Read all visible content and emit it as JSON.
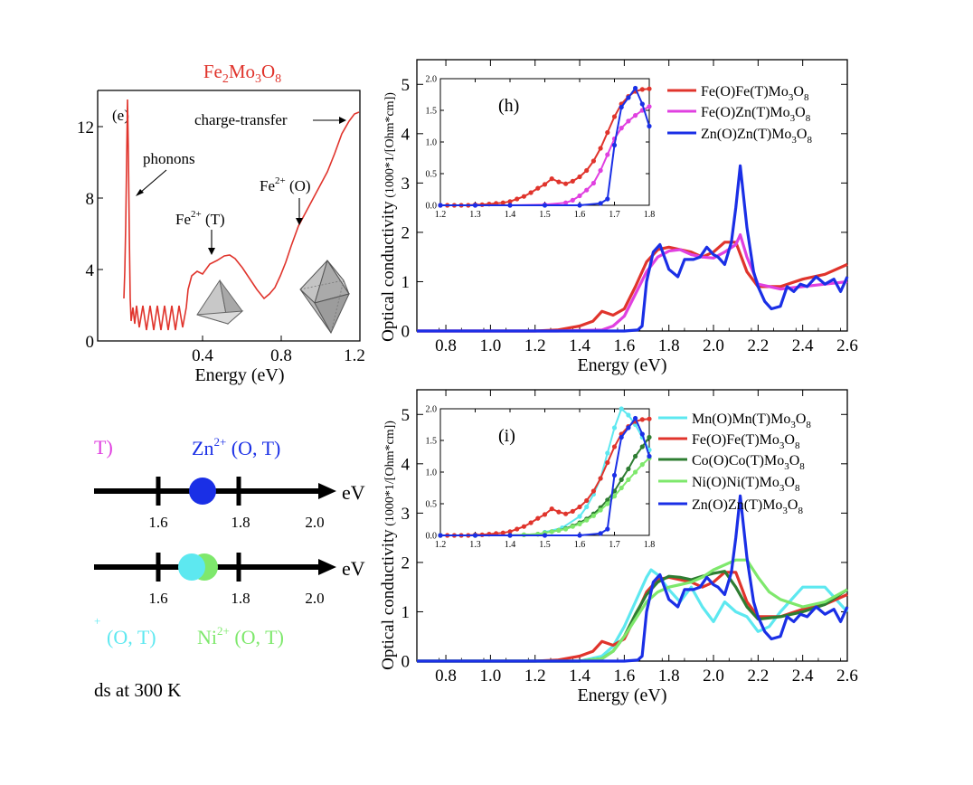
{
  "panel_e": {
    "title": "Fe2Mo3O8",
    "label": "(e)",
    "xlabel": "Energy (eV)",
    "xticks": [
      "0.4",
      "0.8",
      "1.2"
    ],
    "yticks": [
      "12",
      "8",
      "4",
      "0"
    ],
    "annotations": {
      "phonons": "phonons",
      "charge_transfer": "charge-transfer",
      "fe_t": "Fe2+ (T)",
      "fe_o": "Fe2+ (O)"
    }
  },
  "scheme": {
    "top_label_partial": "T)",
    "zn_label": "Zn2+ (O, T)",
    "ev": "eV",
    "ticks": [
      "1.6",
      "1.8",
      "2.0"
    ],
    "bottom_left_partial": "(O, T)",
    "ni_label": "Ni2+ (O, T)",
    "footer": "ds at 300 K",
    "colors": {
      "zn": "#1a2fe6",
      "co": "#5de8f0",
      "ni": "#7ee86c",
      "mn": "#e040e0"
    }
  },
  "chart_data": [
    {
      "id": "h",
      "type": "line",
      "label": "(h)",
      "xlabel": "Energy (eV)",
      "ylabel": "Optical conductivity (1000*1/[Ohm*cm])",
      "xlim": [
        0.67,
        2.6
      ],
      "ylim": [
        0,
        5.5
      ],
      "xticks": [
        0.8,
        1.0,
        1.2,
        1.4,
        1.6,
        1.8,
        2.0,
        2.2,
        2.4,
        2.6
      ],
      "yticks": [
        0,
        1,
        2,
        3,
        4,
        5
      ],
      "legend": "top-right",
      "series": [
        {
          "name": "Fe(O)Fe(T)Mo3O8",
          "color": "#e0342c",
          "x": [
            0.67,
            1.2,
            1.3,
            1.4,
            1.46,
            1.5,
            1.55,
            1.6,
            1.65,
            1.7,
            1.75,
            1.8,
            1.9,
            1.95,
            2.0,
            2.05,
            2.1,
            2.15,
            2.2,
            2.3,
            2.4,
            2.5,
            2.6
          ],
          "y": [
            0,
            0,
            0.02,
            0.1,
            0.2,
            0.4,
            0.32,
            0.45,
            0.9,
            1.4,
            1.65,
            1.7,
            1.6,
            1.5,
            1.6,
            1.8,
            1.8,
            1.2,
            0.9,
            0.9,
            1.05,
            1.15,
            1.35
          ]
        },
        {
          "name": "Fe(O)Zn(T)Mo3O8",
          "color": "#e040e0",
          "x": [
            0.67,
            1.3,
            1.5,
            1.55,
            1.6,
            1.65,
            1.7,
            1.75,
            1.8,
            1.85,
            1.9,
            1.95,
            2.0,
            2.05,
            2.1,
            2.12,
            2.15,
            2.2,
            2.3,
            2.4,
            2.5,
            2.6
          ],
          "y": [
            0,
            0,
            0.02,
            0.1,
            0.3,
            0.75,
            1.2,
            1.5,
            1.62,
            1.65,
            1.55,
            1.5,
            1.48,
            1.6,
            1.75,
            1.95,
            1.5,
            0.95,
            0.85,
            0.9,
            0.95,
            1.0
          ]
        },
        {
          "name": "Zn(O)Zn(T)Mo3O8",
          "color": "#1a2fe6",
          "x": [
            0.67,
            1.6,
            1.66,
            1.68,
            1.7,
            1.73,
            1.76,
            1.8,
            1.84,
            1.87,
            1.91,
            1.94,
            1.97,
            2.0,
            2.02,
            2.05,
            2.08,
            2.1,
            2.12,
            2.15,
            2.18,
            2.2,
            2.23,
            2.26,
            2.3,
            2.33,
            2.36,
            2.39,
            2.42,
            2.46,
            2.5,
            2.54,
            2.57,
            2.6
          ],
          "y": [
            0,
            0,
            0.02,
            0.1,
            1.0,
            1.6,
            1.75,
            1.25,
            1.1,
            1.45,
            1.45,
            1.5,
            1.7,
            1.55,
            1.5,
            1.35,
            1.8,
            2.5,
            3.35,
            2.1,
            1.2,
            0.9,
            0.6,
            0.45,
            0.5,
            0.9,
            0.8,
            0.95,
            0.9,
            1.1,
            0.95,
            1.05,
            0.8,
            1.1
          ]
        }
      ],
      "inset": {
        "xlim": [
          1.2,
          1.8
        ],
        "ylim": [
          0,
          2.0
        ],
        "xticks": [
          1.2,
          1.3,
          1.4,
          1.5,
          1.6,
          1.7,
          1.8
        ],
        "yticks": [
          0.0,
          0.5,
          1.0,
          1.5,
          2.0
        ],
        "series": [
          {
            "color": "#e0342c",
            "x": [
              1.2,
              1.22,
              1.24,
              1.26,
              1.28,
              1.3,
              1.32,
              1.34,
              1.36,
              1.38,
              1.4,
              1.42,
              1.44,
              1.46,
              1.48,
              1.5,
              1.52,
              1.54,
              1.56,
              1.58,
              1.6,
              1.62,
              1.64,
              1.66,
              1.68,
              1.7,
              1.72,
              1.74,
              1.76,
              1.78,
              1.8
            ],
            "y": [
              0,
              0,
              0,
              0,
              0,
              0.01,
              0.01,
              0.02,
              0.03,
              0.04,
              0.06,
              0.1,
              0.14,
              0.2,
              0.27,
              0.33,
              0.42,
              0.37,
              0.34,
              0.38,
              0.45,
              0.55,
              0.7,
              0.9,
              1.15,
              1.4,
              1.6,
              1.72,
              1.8,
              1.83,
              1.84
            ]
          },
          {
            "color": "#e040e0",
            "x": [
              1.2,
              1.3,
              1.4,
              1.5,
              1.56,
              1.58,
              1.6,
              1.62,
              1.64,
              1.66,
              1.68,
              1.7,
              1.72,
              1.74,
              1.76,
              1.78,
              1.8
            ],
            "y": [
              0,
              0,
              0,
              0.01,
              0.04,
              0.08,
              0.15,
              0.24,
              0.35,
              0.55,
              0.8,
              1.05,
              1.22,
              1.33,
              1.42,
              1.5,
              1.56
            ]
          },
          {
            "color": "#1a2fe6",
            "x": [
              1.2,
              1.3,
              1.4,
              1.5,
              1.6,
              1.66,
              1.68,
              1.7,
              1.72,
              1.74,
              1.76,
              1.78,
              1.8
            ],
            "y": [
              0,
              0,
              0,
              0,
              0,
              0.03,
              0.1,
              0.95,
              1.55,
              1.7,
              1.85,
              1.6,
              1.25
            ]
          }
        ]
      }
    },
    {
      "id": "i",
      "type": "line",
      "label": "(i)",
      "xlabel": "Energy (eV)",
      "ylabel": "Optical conductivity (1000*1/[Ohm*cm])",
      "xlim": [
        0.67,
        2.6
      ],
      "ylim": [
        0,
        5.5
      ],
      "xticks": [
        0.8,
        1.0,
        1.2,
        1.4,
        1.6,
        1.8,
        2.0,
        2.2,
        2.4,
        2.6
      ],
      "yticks": [
        0,
        1,
        2,
        3,
        4,
        5
      ],
      "legend": "top-right",
      "series": [
        {
          "name": "Mn(O)Mn(T)Mo3O8",
          "color": "#5de8f0",
          "x": [
            0.67,
            1.4,
            1.5,
            1.55,
            1.6,
            1.65,
            1.7,
            1.72,
            1.75,
            1.8,
            1.85,
            1.9,
            1.95,
            2.0,
            2.05,
            2.1,
            2.15,
            2.2,
            2.25,
            2.3,
            2.4,
            2.5,
            2.6
          ],
          "y": [
            0,
            0,
            0.1,
            0.3,
            0.7,
            1.2,
            1.7,
            1.85,
            1.75,
            1.45,
            1.2,
            1.5,
            1.1,
            0.8,
            1.2,
            1.0,
            0.9,
            0.6,
            0.7,
            1.0,
            1.5,
            1.5,
            1.0
          ]
        },
        {
          "name": "Fe(O)Fe(T)Mo3O8",
          "color": "#e0342c",
          "x": [
            0.67,
            1.2,
            1.3,
            1.4,
            1.46,
            1.5,
            1.55,
            1.6,
            1.65,
            1.7,
            1.75,
            1.8,
            1.9,
            1.95,
            2.0,
            2.05,
            2.1,
            2.15,
            2.2,
            2.3,
            2.4,
            2.5,
            2.6
          ],
          "y": [
            0,
            0,
            0.02,
            0.1,
            0.2,
            0.4,
            0.32,
            0.45,
            0.9,
            1.4,
            1.65,
            1.7,
            1.6,
            1.5,
            1.6,
            1.8,
            1.8,
            1.2,
            0.9,
            0.9,
            1.05,
            1.15,
            1.35
          ]
        },
        {
          "name": "Co(O)Co(T)Mo3O8",
          "color": "#2e7d32",
          "x": [
            0.67,
            1.4,
            1.5,
            1.55,
            1.6,
            1.65,
            1.7,
            1.75,
            1.8,
            1.85,
            1.9,
            1.95,
            2.0,
            2.05,
            2.1,
            2.15,
            2.2,
            2.3,
            2.4,
            2.5,
            2.6
          ],
          "y": [
            0,
            0,
            0.05,
            0.2,
            0.5,
            0.95,
            1.35,
            1.6,
            1.72,
            1.7,
            1.65,
            1.72,
            1.78,
            1.82,
            1.5,
            1.1,
            0.85,
            0.9,
            1.0,
            1.15,
            1.45
          ]
        },
        {
          "name": "Ni(O)Ni(T)Mo3O8",
          "color": "#7ee86c",
          "x": [
            0.67,
            1.4,
            1.5,
            1.55,
            1.6,
            1.65,
            1.7,
            1.75,
            1.8,
            1.85,
            1.9,
            1.95,
            2.0,
            2.05,
            2.1,
            2.15,
            2.2,
            2.25,
            2.3,
            2.4,
            2.5,
            2.6
          ],
          "y": [
            0,
            0,
            0.05,
            0.2,
            0.5,
            0.85,
            1.2,
            1.4,
            1.5,
            1.55,
            1.6,
            1.7,
            1.85,
            1.95,
            2.05,
            2.05,
            1.7,
            1.4,
            1.25,
            1.1,
            1.2,
            1.45
          ]
        },
        {
          "name": "Zn(O)Zn(T)Mo3O8",
          "color": "#1a2fe6",
          "x": [
            0.67,
            1.6,
            1.66,
            1.68,
            1.7,
            1.73,
            1.76,
            1.8,
            1.84,
            1.87,
            1.91,
            1.94,
            1.97,
            2.0,
            2.02,
            2.05,
            2.08,
            2.1,
            2.12,
            2.15,
            2.18,
            2.2,
            2.23,
            2.26,
            2.3,
            2.33,
            2.36,
            2.39,
            2.42,
            2.46,
            2.5,
            2.54,
            2.57,
            2.6
          ],
          "y": [
            0,
            0,
            0.02,
            0.1,
            1.0,
            1.6,
            1.75,
            1.25,
            1.1,
            1.45,
            1.45,
            1.5,
            1.7,
            1.55,
            1.5,
            1.35,
            1.8,
            2.5,
            3.35,
            2.1,
            1.2,
            0.9,
            0.6,
            0.45,
            0.5,
            0.9,
            0.8,
            0.95,
            0.9,
            1.1,
            0.95,
            1.05,
            0.8,
            1.1
          ]
        }
      ],
      "inset": {
        "xlim": [
          1.2,
          1.8
        ],
        "ylim": [
          0,
          2.0
        ],
        "xticks": [
          1.2,
          1.3,
          1.4,
          1.5,
          1.6,
          1.7,
          1.8
        ],
        "yticks": [
          0.0,
          0.5,
          1.0,
          1.5,
          2.0
        ],
        "series": [
          {
            "color": "#5de8f0",
            "x": [
              1.5,
              1.55,
              1.6,
              1.62,
              1.64,
              1.66,
              1.68,
              1.7,
              1.72,
              1.74,
              1.76,
              1.78,
              1.8
            ],
            "y": [
              0.05,
              0.12,
              0.3,
              0.45,
              0.65,
              0.9,
              1.3,
              1.7,
              2.0,
              1.9,
              1.75,
              1.55,
              1.35
            ]
          },
          {
            "color": "#e0342c",
            "x": [
              1.2,
              1.22,
              1.24,
              1.26,
              1.28,
              1.3,
              1.32,
              1.34,
              1.36,
              1.38,
              1.4,
              1.42,
              1.44,
              1.46,
              1.48,
              1.5,
              1.52,
              1.54,
              1.56,
              1.58,
              1.6,
              1.62,
              1.64,
              1.66,
              1.68,
              1.7,
              1.72,
              1.74,
              1.76,
              1.78,
              1.8
            ],
            "y": [
              0,
              0,
              0,
              0,
              0,
              0.01,
              0.01,
              0.02,
              0.03,
              0.04,
              0.06,
              0.1,
              0.14,
              0.2,
              0.27,
              0.33,
              0.42,
              0.37,
              0.34,
              0.38,
              0.45,
              0.55,
              0.7,
              0.9,
              1.15,
              1.4,
              1.6,
              1.72,
              1.8,
              1.83,
              1.84
            ]
          },
          {
            "color": "#2e7d32",
            "x": [
              1.2,
              1.3,
              1.4,
              1.44,
              1.48,
              1.5,
              1.52,
              1.54,
              1.56,
              1.58,
              1.6,
              1.62,
              1.64,
              1.66,
              1.68,
              1.7,
              1.72,
              1.74,
              1.76,
              1.78,
              1.8
            ],
            "y": [
              0,
              0,
              0,
              0.01,
              0.02,
              0.04,
              0.06,
              0.08,
              0.11,
              0.15,
              0.2,
              0.26,
              0.34,
              0.44,
              0.56,
              0.7,
              0.88,
              1.05,
              1.25,
              1.4,
              1.55
            ]
          },
          {
            "color": "#7ee86c",
            "x": [
              1.2,
              1.3,
              1.4,
              1.44,
              1.48,
              1.5,
              1.52,
              1.54,
              1.56,
              1.58,
              1.6,
              1.62,
              1.64,
              1.66,
              1.68,
              1.7,
              1.72,
              1.74,
              1.76,
              1.78,
              1.8
            ],
            "y": [
              0,
              0,
              0,
              0.01,
              0.02,
              0.04,
              0.06,
              0.08,
              0.1,
              0.14,
              0.18,
              0.24,
              0.31,
              0.4,
              0.5,
              0.62,
              0.75,
              0.88,
              1.0,
              1.12,
              1.22
            ]
          },
          {
            "color": "#1a2fe6",
            "x": [
              1.2,
              1.3,
              1.4,
              1.5,
              1.6,
              1.66,
              1.68,
              1.7,
              1.72,
              1.74,
              1.76,
              1.78,
              1.8
            ],
            "y": [
              0,
              0,
              0,
              0,
              0,
              0.03,
              0.1,
              0.95,
              1.55,
              1.7,
              1.85,
              1.6,
              1.25
            ]
          }
        ]
      }
    }
  ]
}
